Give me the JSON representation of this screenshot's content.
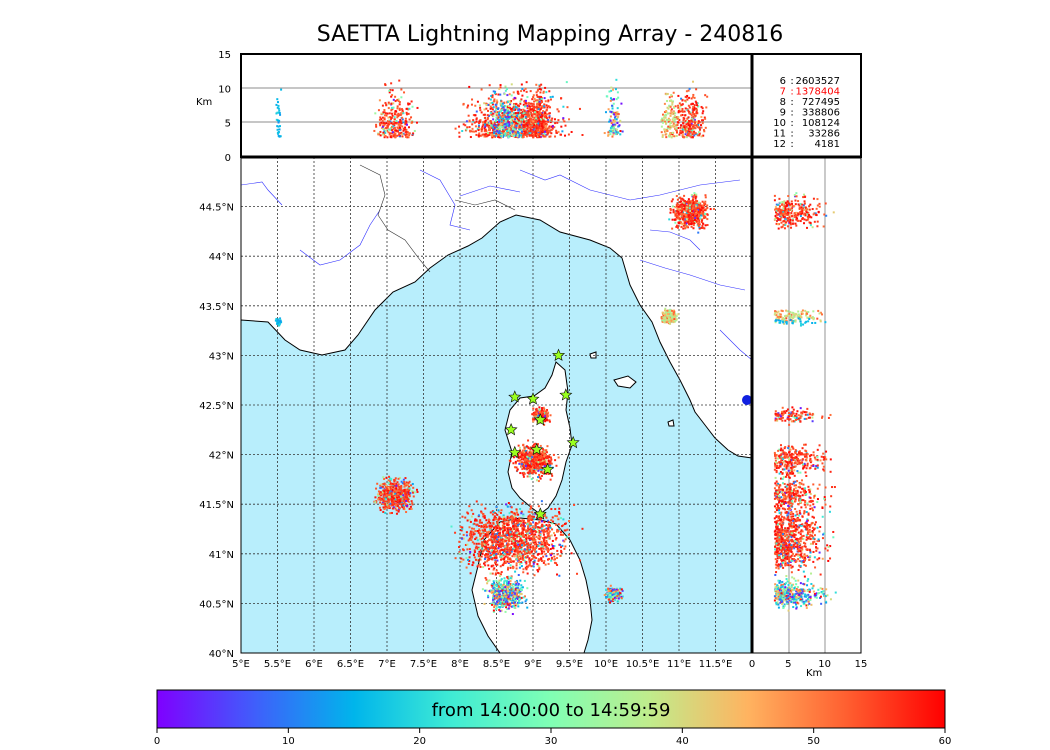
{
  "title": "SAETTA Lightning Mapping Array - 240816",
  "units": {
    "top_left": "Km",
    "right_bottom": "Km"
  },
  "stats": [
    {
      "station": "6",
      "count": "2603527",
      "highlight": false
    },
    {
      "station": "7",
      "count": "1378404",
      "highlight": true
    },
    {
      "station": "8",
      "count": "727495",
      "highlight": false
    },
    {
      "station": "9",
      "count": "338806",
      "highlight": false
    },
    {
      "station": "10",
      "count": "108124",
      "highlight": false
    },
    {
      "station": "11",
      "count": "33286",
      "highlight": false
    },
    {
      "station": "12",
      "count": "4181",
      "highlight": false
    }
  ],
  "map": {
    "lon_ticks": [
      "5°E",
      "5.5°E",
      "6°E",
      "6.5°E",
      "7°E",
      "7.5°E",
      "8°E",
      "8.5°E",
      "9°E",
      "9.5°E",
      "10°E",
      "10.5°E",
      "11°E",
      "11.5°E"
    ],
    "lat_ticks": [
      "40°N",
      "40.5°N",
      "41°N",
      "41.5°N",
      "42°N",
      "42.5°N",
      "43°N",
      "43.5°N",
      "44°N",
      "44.5°N"
    ],
    "sea_color": "#b8eefc",
    "lightning_clusters": [
      {
        "lon": 8.72,
        "lat": 41.15,
        "size": "large",
        "dominant": "red"
      },
      {
        "lon": 8.62,
        "lat": 40.6,
        "size": "medium",
        "dominant": "mixed"
      },
      {
        "lon": 9.0,
        "lat": 41.95,
        "size": "medium",
        "dominant": "red"
      },
      {
        "lon": 9.1,
        "lat": 42.4,
        "size": "small",
        "dominant": "red"
      },
      {
        "lon": 7.1,
        "lat": 41.6,
        "size": "medium",
        "dominant": "red"
      },
      {
        "lon": 11.15,
        "lat": 44.45,
        "size": "medium",
        "dominant": "red"
      },
      {
        "lon": 10.1,
        "lat": 40.6,
        "size": "small",
        "dominant": "mixed"
      },
      {
        "lon": 10.85,
        "lat": 43.4,
        "size": "small",
        "dominant": "orange"
      },
      {
        "lon": 5.5,
        "lat": 43.35,
        "size": "tiny",
        "dominant": "blue"
      }
    ],
    "stations_marker": "star",
    "station_color": "#9aff20"
  },
  "altitude_axes": {
    "top_y_ticks": [
      "0",
      "5",
      "10",
      "15"
    ],
    "right_x_ticks": [
      "0",
      "5",
      "10",
      "15"
    ]
  },
  "colorbar": {
    "label": "from 14:00:00 to 14:59:59",
    "ticks": [
      "0",
      "10",
      "20",
      "30",
      "40",
      "50",
      "60"
    ],
    "colormap": [
      "#7f00ff",
      "#3f5ffb",
      "#00b5eb",
      "#40ecd4",
      "#80ffb4",
      "#c0ec8c",
      "#ffb360",
      "#ff5f30",
      "#ff0000"
    ]
  }
}
